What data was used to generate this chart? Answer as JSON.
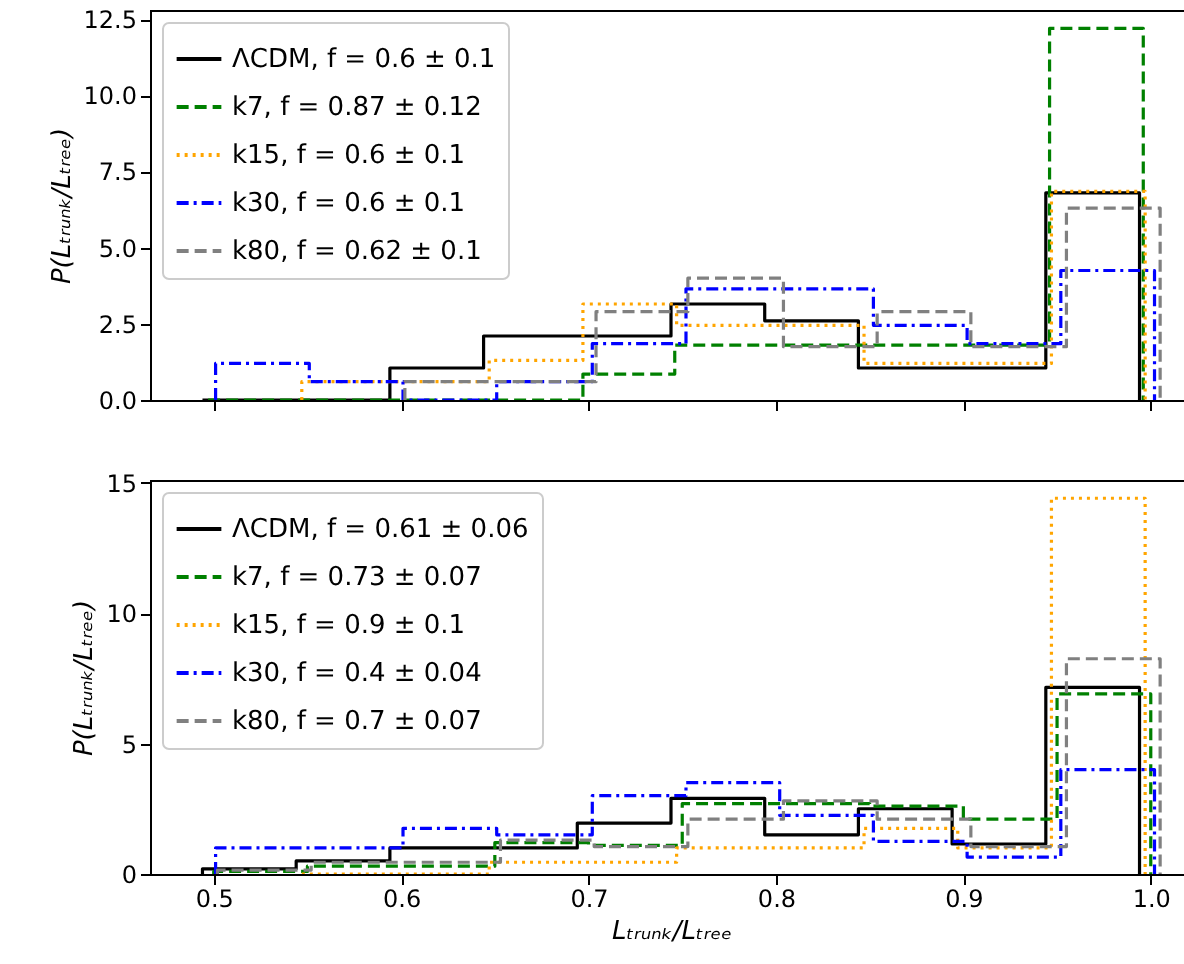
{
  "chart_data": [
    {
      "type": "step",
      "ylabel": "P(Lₜᵣᵤₙₖ/Lₜᵣₑₑ)",
      "xlim": [
        0.466,
        1.022
      ],
      "xticks": [
        0.5,
        0.6,
        0.7,
        0.8,
        0.9,
        1
      ],
      "ylim": [
        0,
        12.8
      ],
      "yticks": [
        {
          "value": 0,
          "label": "0.0"
        },
        2.5,
        {
          "value": 5,
          "label": "5.0"
        },
        7.5,
        {
          "value": 10,
          "label": "10.0"
        },
        12.5
      ],
      "tick_labels": "y",
      "legend": "top left",
      "series": [
        {
          "name": "ΛCDM, f = 0.6 ± 0.1",
          "color": "#000000",
          "line_style": "solid",
          "x": [
            0.494,
            0.494,
            0.544,
            0.594,
            0.644,
            0.694,
            0.744,
            0.794,
            0.844,
            0.894,
            0.944,
            0.994
          ],
          "values": [
            0,
            0,
            0,
            1.05,
            2.1,
            2.1,
            3.15,
            2.6,
            1.05,
            1.05,
            6.8,
            0
          ]
        },
        {
          "name": "k7, f = 0.87 ± 0.12",
          "color": "#008000",
          "line_style": "dashed",
          "x": [
            0.497,
            0.497,
            0.547,
            0.597,
            0.647,
            0.697,
            0.746,
            0.796,
            0.846,
            0.896,
            0.946,
            0.996
          ],
          "values": [
            0,
            0,
            0,
            0,
            0,
            0.85,
            1.8,
            1.8,
            1.8,
            1.8,
            12.2,
            0
          ]
        },
        {
          "name": "k15, f = 0.6 ± 0.1",
          "color": "#ffa500",
          "line_style": "dotted",
          "x": [
            0.547,
            0.547,
            0.597,
            0.647,
            0.697,
            0.747,
            0.797,
            0.847,
            0.897,
            0.947,
            0.997
          ],
          "values": [
            0,
            0.6,
            0.6,
            1.3,
            3.15,
            2.45,
            2.45,
            1.2,
            1.2,
            6.85,
            0
          ]
        },
        {
          "name": "k30, f = 0.6 ± 0.1",
          "color": "#0000ff",
          "line_style": "dashdot",
          "x": [
            0.501,
            0.501,
            0.551,
            0.601,
            0.651,
            0.702,
            0.752,
            0.802,
            0.852,
            0.902,
            0.952,
            1.002
          ],
          "values": [
            0,
            1.2,
            0.6,
            0,
            0.6,
            1.85,
            3.65,
            3.65,
            2.45,
            1.85,
            4.25,
            0
          ]
        },
        {
          "name": "k80, f = 0.62 ± 0.1",
          "color": "#808080",
          "line_style": "dashed",
          "x": [
            0.602,
            0.602,
            0.653,
            0.704,
            0.753,
            0.804,
            0.854,
            0.904,
            0.955,
            1.005
          ],
          "values": [
            0,
            0.6,
            0.6,
            2.9,
            4.0,
            1.75,
            2.9,
            1.75,
            6.3,
            0
          ]
        }
      ]
    },
    {
      "type": "step",
      "xlabel": "Lₜᵣᵤₙₖ/Lₜᵣₑₑ",
      "ylabel": "P(Lₜᵣᵤₙₖ/Lₜᵣₑₑ)",
      "xlim": [
        0.466,
        1.022
      ],
      "xticks": [
        0.5,
        0.6,
        0.7,
        0.8,
        0.9,
        {
          "value": 1,
          "label": "1.0"
        }
      ],
      "ylim": [
        0,
        15.1
      ],
      "yticks": [
        0,
        5,
        10,
        15
      ],
      "legend": "top left",
      "series": [
        {
          "name": "ΛCDM, f = 0.61 ± 0.06",
          "color": "#000000",
          "line_style": "solid",
          "x": [
            0.494,
            0.494,
            0.544,
            0.594,
            0.644,
            0.694,
            0.744,
            0.794,
            0.844,
            0.894,
            0.944,
            0.994
          ],
          "values": [
            0,
            0.2,
            0.5,
            1.0,
            1.0,
            1.95,
            2.9,
            1.5,
            2.5,
            1.15,
            7.15,
            0
          ]
        },
        {
          "name": "k7, f = 0.73 ± 0.07",
          "color": "#008000",
          "line_style": "dashed",
          "x": [
            0.5,
            0.5,
            0.55,
            0.6,
            0.65,
            0.7,
            0.75,
            0.8,
            0.85,
            0.9,
            0.95,
            1.0
          ],
          "values": [
            0,
            0.1,
            0.3,
            0.3,
            1.2,
            1.1,
            2.7,
            2.7,
            2.6,
            2.1,
            6.9,
            0
          ]
        },
        {
          "name": "k15, f = 0.9 ± 0.1",
          "color": "#ffa500",
          "line_style": "dotted",
          "x": [
            0.547,
            0.547,
            0.597,
            0.647,
            0.697,
            0.747,
            0.797,
            0.847,
            0.897,
            0.947,
            0.997
          ],
          "values": [
            0,
            0,
            0,
            0.45,
            0.45,
            1.0,
            1.0,
            1.75,
            1.0,
            14.4,
            0
          ]
        },
        {
          "name": "k30, f = 0.4 ± 0.04",
          "color": "#0000ff",
          "line_style": "dashdot",
          "x": [
            0.501,
            0.501,
            0.551,
            0.601,
            0.651,
            0.702,
            0.752,
            0.802,
            0.852,
            0.902,
            0.952,
            1.002
          ],
          "values": [
            0,
            1.0,
            1.0,
            1.75,
            1.5,
            3.0,
            3.5,
            2.25,
            1.25,
            0.65,
            4.0,
            0
          ]
        },
        {
          "name": "k80, f = 0.7 ± 0.07",
          "color": "#808080",
          "line_style": "dashed",
          "x": [
            0.502,
            0.502,
            0.552,
            0.603,
            0.653,
            0.703,
            0.753,
            0.804,
            0.854,
            0.904,
            0.955,
            1.005
          ],
          "values": [
            0,
            0.15,
            0.45,
            0.45,
            1.3,
            1.05,
            2.1,
            2.8,
            2.1,
            1.05,
            8.25,
            0
          ]
        }
      ]
    }
  ]
}
